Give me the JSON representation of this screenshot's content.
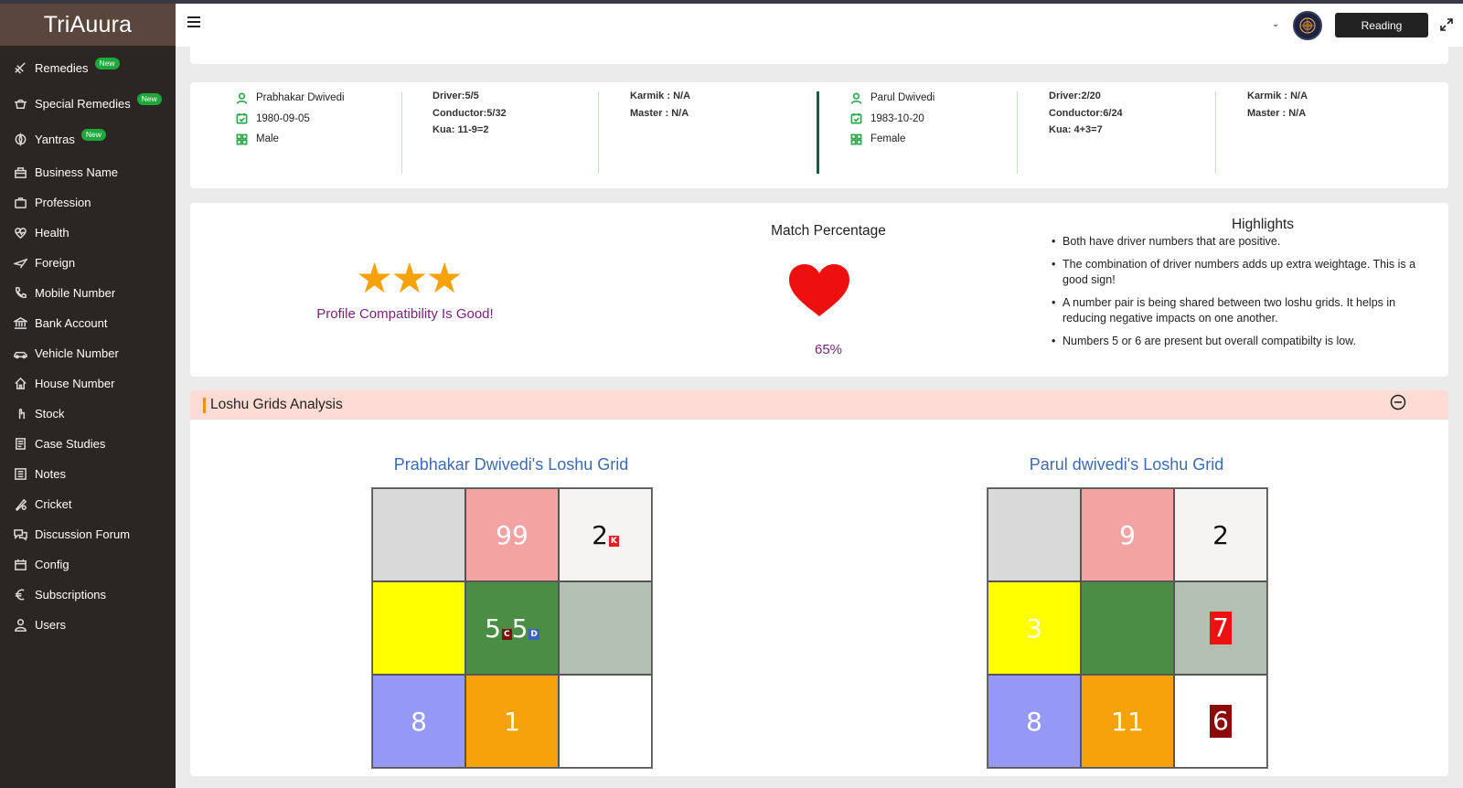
{
  "app": {
    "brand": "TriAuura"
  },
  "sidebar": {
    "items": [
      {
        "label": "Remedies",
        "badge": "New",
        "icon": "remedies-icon"
      },
      {
        "label": "Special Remedies",
        "badge": "New",
        "icon": "special-remedies-icon"
      },
      {
        "label": "Yantras",
        "badge": "New",
        "icon": "yantras-icon"
      },
      {
        "label": "Business Name",
        "icon": "business-icon"
      },
      {
        "label": "Profession",
        "icon": "profession-icon"
      },
      {
        "label": "Health",
        "icon": "health-icon"
      },
      {
        "label": "Foreign",
        "icon": "airplane-icon"
      },
      {
        "label": "Mobile Number",
        "icon": "phone-icon"
      },
      {
        "label": "Bank Account",
        "icon": "bank-icon"
      },
      {
        "label": "Vehicle Number",
        "icon": "car-icon"
      },
      {
        "label": "House Number",
        "icon": "house-icon"
      },
      {
        "label": "Stock",
        "icon": "stock-icon"
      },
      {
        "label": "Case Studies",
        "icon": "case-studies-icon"
      },
      {
        "label": "Notes",
        "icon": "notes-icon"
      },
      {
        "label": "Cricket",
        "icon": "cricket-icon"
      },
      {
        "label": "Discussion Forum",
        "icon": "forum-icon"
      },
      {
        "label": "Config",
        "icon": "config-icon"
      },
      {
        "label": "Subscriptions",
        "icon": "euro-icon"
      },
      {
        "label": "Users",
        "icon": "user-icon"
      }
    ]
  },
  "topbar": {
    "reading_label": "Reading"
  },
  "profiles": [
    {
      "name": "Prabhakar Dwivedi",
      "dob": "1980-09-05",
      "gender": "Male",
      "driver_label": "Driver:",
      "driver": "5/5",
      "conductor_label": "Conductor:",
      "conductor": "5/32",
      "kua": "Kua: 11-9=2",
      "karmik": "Karmik : N/A",
      "master": "Master : N/A"
    },
    {
      "name": "Parul Dwivedi",
      "dob": "1983-10-20",
      "gender": "Female",
      "driver_label": "Driver:",
      "driver": "2/20",
      "conductor_label": "Conductor:",
      "conductor": "6/24",
      "kua": "Kua: 4+3=7",
      "karmik": "Karmik : N/A",
      "master": "Master : N/A"
    }
  ],
  "compatibility": {
    "stars": "★★★",
    "star_count": 3,
    "text": "Profile Compatibility Is Good!",
    "match_title": "Match Percentage",
    "match_value": "65%"
  },
  "highlights": {
    "title": "Highlights",
    "items": [
      "Both have driver numbers that are positive.",
      "The combination of driver numbers adds up extra weightage. This is a good sign!",
      "A number pair is being shared between two loshu grids. It helps in reducing negative impacts on one another.",
      "Numbers 5 or 6 are present but overall compatibilty is low."
    ]
  },
  "loshu": {
    "section_title": "Loshu Grids Analysis",
    "grids": [
      {
        "title": "Prabhakar Dwivedi's Loshu Grid",
        "cells": [
          {
            "main": "",
            "bg": "#d9d9d9"
          },
          {
            "main": "99",
            "bg": "#f4a3a3"
          },
          {
            "main": "2",
            "bg": "#f5f4f2",
            "dark": true,
            "sub": "K",
            "sub_bg": "#e02020"
          },
          {
            "main": "",
            "bg": "#ffff00"
          },
          {
            "main": "5",
            "bg": "#4a8d45",
            "sub": "C",
            "sub_bg": "#7a1010",
            "main2": "5",
            "sub2": "D",
            "sub2_bg": "#3a63c4"
          },
          {
            "main": "",
            "bg": "#b3bfb3"
          },
          {
            "main": "8",
            "bg": "#9698f5"
          },
          {
            "main": "1",
            "bg": "#f7a20a"
          },
          {
            "main": "",
            "bg": "#ffffff"
          }
        ]
      },
      {
        "title": "Parul dwivedi's Loshu Grid",
        "cells": [
          {
            "main": "",
            "bg": "#d9d9d9"
          },
          {
            "main": "9",
            "bg": "#f4a3a3"
          },
          {
            "main": "2",
            "bg": "#f5f4f2",
            "dark": true
          },
          {
            "main": "3",
            "bg": "#ffff00"
          },
          {
            "main": "",
            "bg": "#4a8d45"
          },
          {
            "main": "7",
            "bg": "#b3bfb3",
            "highlight": "#ee1111"
          },
          {
            "main": "8",
            "bg": "#9698f5"
          },
          {
            "main": "11",
            "bg": "#f7a20a"
          },
          {
            "main": "6",
            "bg": "#ffffff",
            "highlight": "#8b0a0a"
          }
        ]
      }
    ]
  }
}
